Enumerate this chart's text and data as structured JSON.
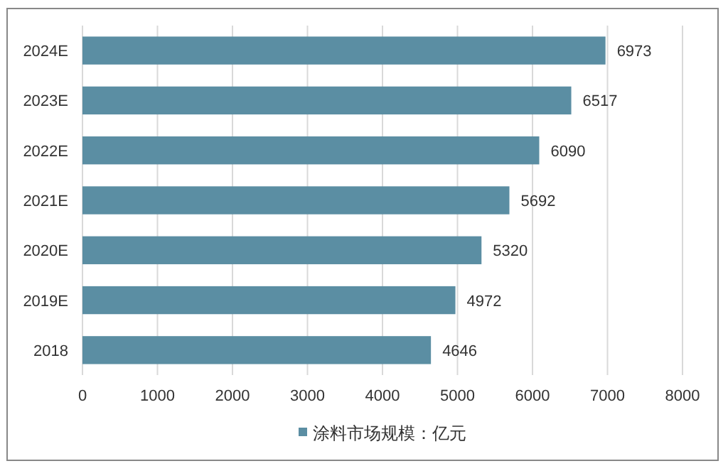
{
  "chart_data": {
    "type": "bar",
    "orientation": "horizontal",
    "categories": [
      "2024E",
      "2023E",
      "2022E",
      "2021E",
      "2020E",
      "2019E",
      "2018"
    ],
    "series": [
      {
        "name": "涂料市场规模：亿元",
        "color": "#5b8ea3",
        "values": [
          6973,
          6517,
          6090,
          5692,
          5320,
          4972,
          4646
        ]
      }
    ],
    "xlim": [
      0,
      8000
    ],
    "xticks": [
      0,
      1000,
      2000,
      3000,
      4000,
      5000,
      6000,
      7000,
      8000
    ],
    "grid": "x",
    "data_labels": true,
    "legend": "bottom"
  }
}
